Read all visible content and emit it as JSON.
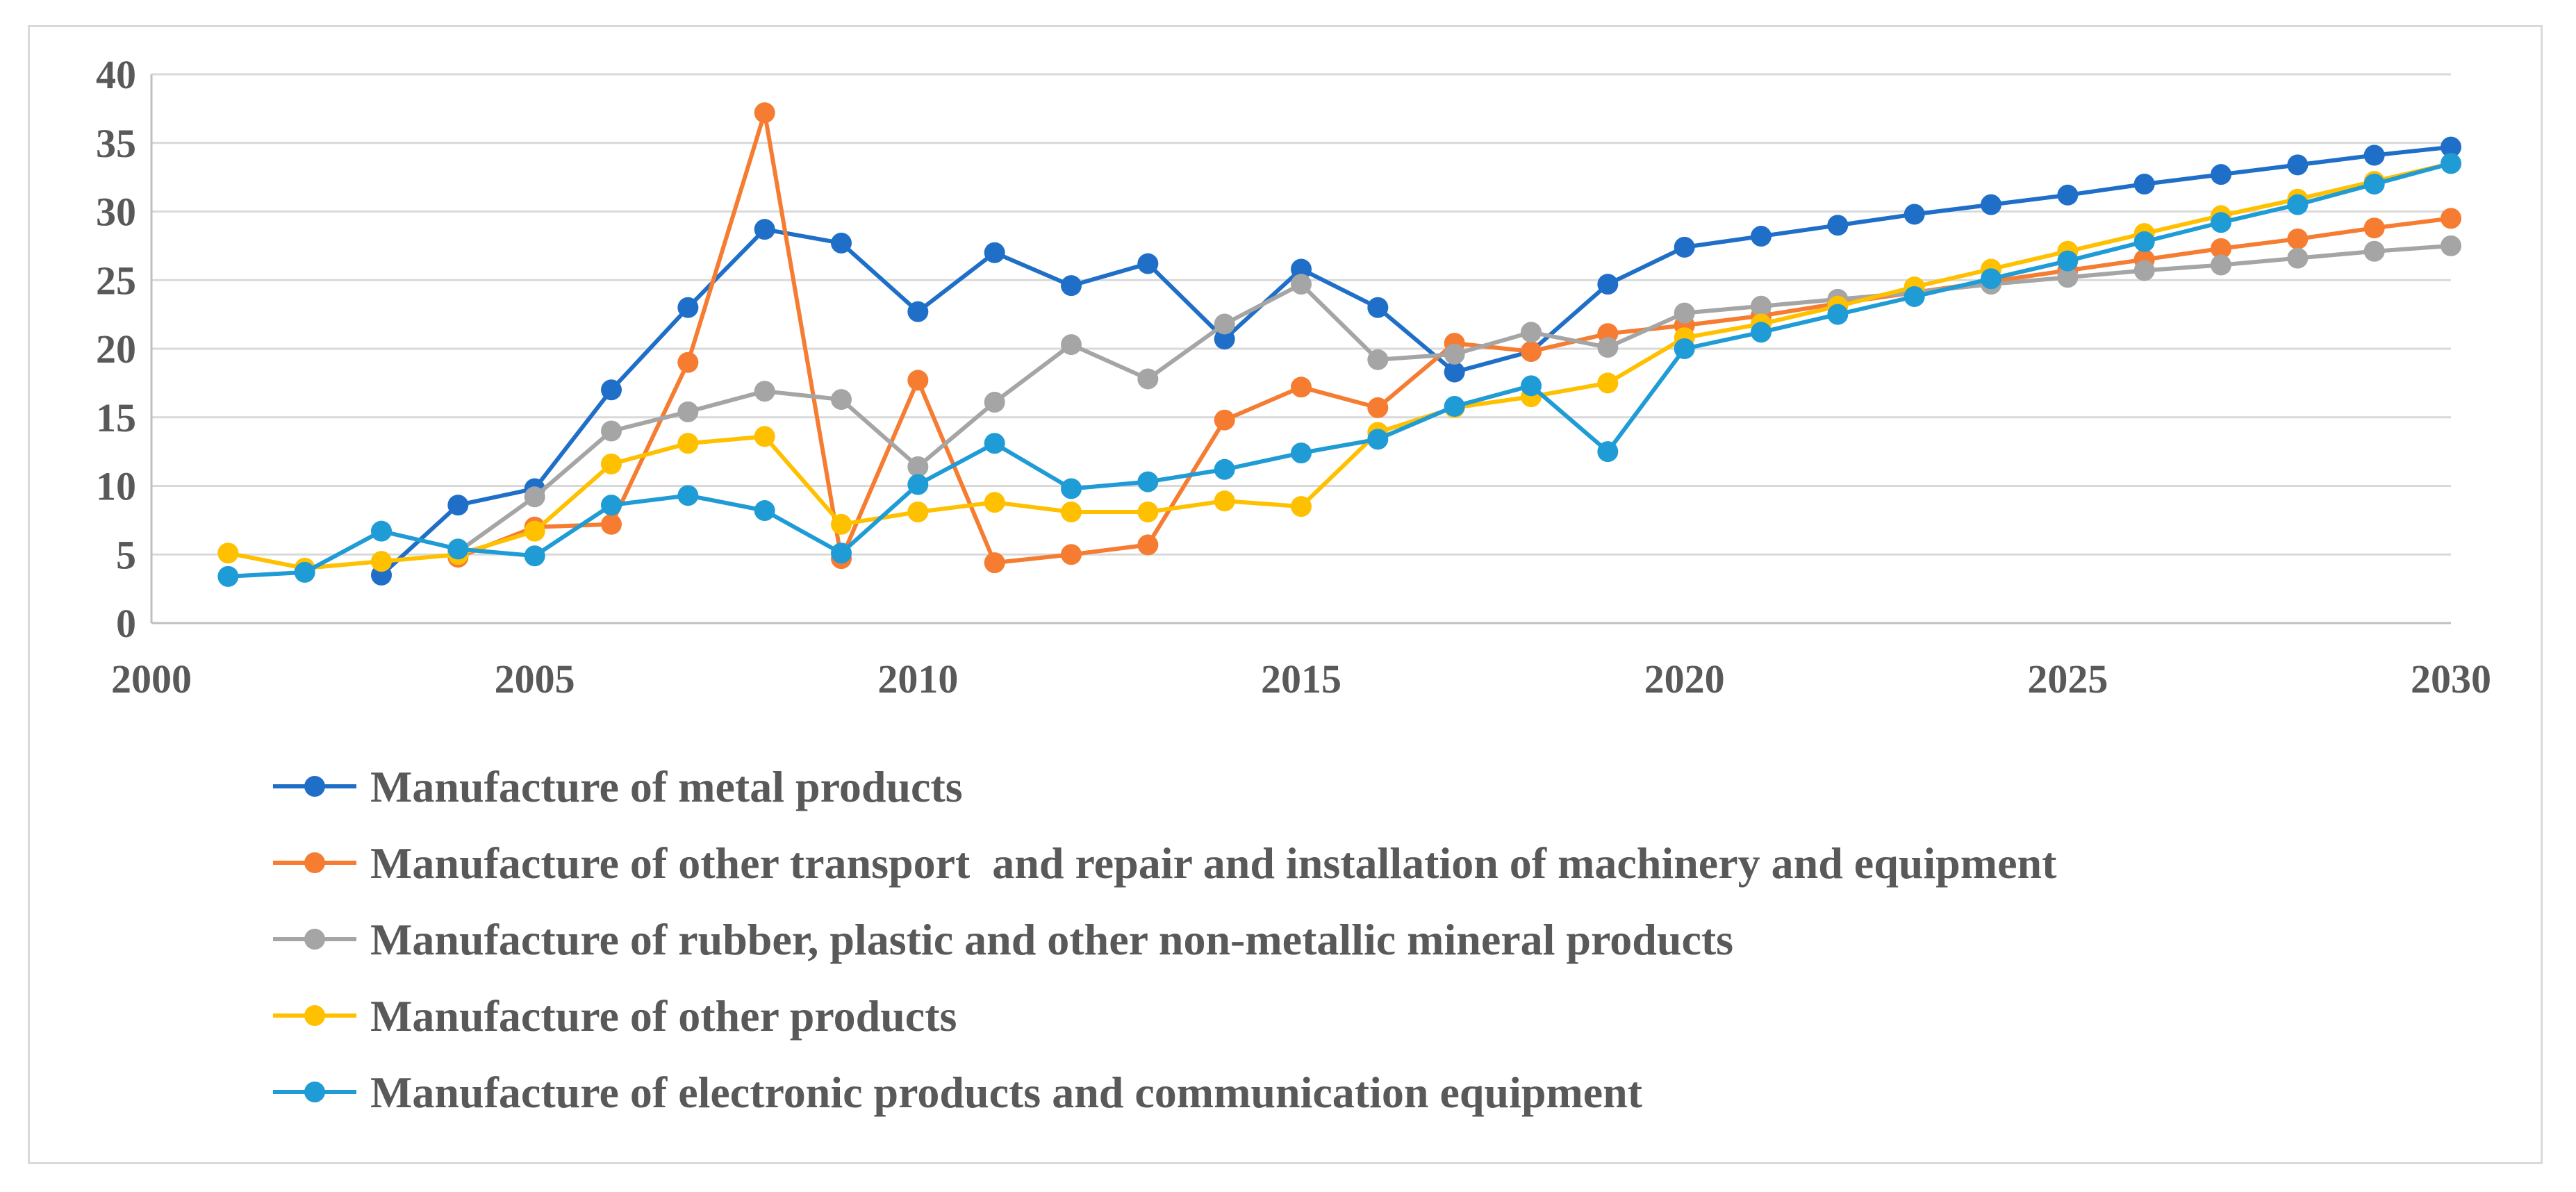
{
  "chart_data": {
    "type": "line",
    "title": "",
    "xlabel": "",
    "ylabel": "",
    "xlim": [
      2000,
      2030
    ],
    "ylim": [
      0,
      40
    ],
    "xticks": [
      2000,
      2005,
      2010,
      2015,
      2020,
      2025,
      2030
    ],
    "yticks": [
      0,
      5,
      10,
      15,
      20,
      25,
      30,
      35,
      40
    ],
    "x_tick_labels": [
      "2000",
      "2005",
      "2010",
      "2015",
      "2020",
      "2025",
      "2030"
    ],
    "y_tick_labels": [
      "0",
      "5",
      "10",
      "15",
      "20",
      "25",
      "30",
      "35",
      "40"
    ],
    "grid": "horizontal",
    "legend_position": "bottom",
    "series": [
      {
        "name": "Manufacture of metal products",
        "color": "#1f6fc8",
        "points": [
          [
            2003,
            3.5
          ],
          [
            2004,
            8.6
          ],
          [
            2005,
            9.8
          ],
          [
            2006,
            17.0
          ],
          [
            2007,
            23.0
          ],
          [
            2008,
            28.7
          ],
          [
            2009,
            27.7
          ],
          [
            2010,
            22.7
          ],
          [
            2011,
            27.0
          ],
          [
            2012,
            24.6
          ],
          [
            2013,
            26.2
          ],
          [
            2014,
            20.7
          ],
          [
            2015,
            25.8
          ],
          [
            2016,
            23.0
          ],
          [
            2017,
            18.3
          ],
          [
            2018,
            19.8
          ],
          [
            2019,
            24.7
          ],
          [
            2020,
            27.4
          ],
          [
            2021,
            28.2
          ],
          [
            2022,
            29.0
          ],
          [
            2023,
            29.8
          ],
          [
            2024,
            30.5
          ],
          [
            2025,
            31.2
          ],
          [
            2026,
            32.0
          ],
          [
            2027,
            32.7
          ],
          [
            2028,
            33.4
          ],
          [
            2029,
            34.1
          ],
          [
            2030,
            34.7
          ]
        ]
      },
      {
        "name": "Manufacture of other transport  and repair and installation of machinery and equipment",
        "color": "#f57c30",
        "points": [
          [
            2004,
            4.8
          ],
          [
            2005,
            7.0
          ],
          [
            2006,
            7.2
          ],
          [
            2007,
            19.0
          ],
          [
            2008,
            37.2
          ],
          [
            2009,
            4.7
          ],
          [
            2010,
            17.7
          ],
          [
            2011,
            4.4
          ],
          [
            2012,
            5.0
          ],
          [
            2013,
            5.7
          ],
          [
            2014,
            14.8
          ],
          [
            2015,
            17.2
          ],
          [
            2016,
            15.7
          ],
          [
            2017,
            20.4
          ],
          [
            2018,
            19.8
          ],
          [
            2019,
            21.1
          ],
          [
            2020,
            21.7
          ],
          [
            2021,
            22.4
          ],
          [
            2022,
            23.3
          ],
          [
            2023,
            24.1
          ],
          [
            2024,
            24.9
          ],
          [
            2025,
            25.7
          ],
          [
            2026,
            26.5
          ],
          [
            2027,
            27.3
          ],
          [
            2028,
            28.0
          ],
          [
            2029,
            28.8
          ],
          [
            2030,
            29.5
          ]
        ]
      },
      {
        "name": "Manufacture of rubber, plastic and other non-metallic mineral products",
        "color": "#a5a5a5",
        "points": [
          [
            2004,
            5.2
          ],
          [
            2005,
            9.2
          ],
          [
            2006,
            14.0
          ],
          [
            2007,
            15.4
          ],
          [
            2008,
            16.9
          ],
          [
            2009,
            16.3
          ],
          [
            2010,
            11.4
          ],
          [
            2011,
            16.1
          ],
          [
            2012,
            20.3
          ],
          [
            2013,
            17.8
          ],
          [
            2014,
            21.8
          ],
          [
            2015,
            24.7
          ],
          [
            2016,
            19.2
          ],
          [
            2017,
            19.6
          ],
          [
            2018,
            21.2
          ],
          [
            2019,
            20.1
          ],
          [
            2020,
            22.6
          ],
          [
            2021,
            23.1
          ],
          [
            2022,
            23.6
          ],
          [
            2023,
            24.1
          ],
          [
            2024,
            24.7
          ],
          [
            2025,
            25.2
          ],
          [
            2026,
            25.7
          ],
          [
            2027,
            26.1
          ],
          [
            2028,
            26.6
          ],
          [
            2029,
            27.1
          ],
          [
            2030,
            27.5
          ]
        ]
      },
      {
        "name": "Manufacture of other products",
        "color": "#ffc000",
        "points": [
          [
            2001,
            5.1
          ],
          [
            2002,
            4.0
          ],
          [
            2003,
            4.5
          ],
          [
            2004,
            5.0
          ],
          [
            2005,
            6.7
          ],
          [
            2006,
            11.6
          ],
          [
            2007,
            13.1
          ],
          [
            2008,
            13.6
          ],
          [
            2009,
            7.2
          ],
          [
            2010,
            8.1
          ],
          [
            2011,
            8.8
          ],
          [
            2012,
            8.1
          ],
          [
            2013,
            8.1
          ],
          [
            2014,
            8.9
          ],
          [
            2015,
            8.5
          ],
          [
            2016,
            13.9
          ],
          [
            2017,
            15.7
          ],
          [
            2018,
            16.5
          ],
          [
            2019,
            17.5
          ],
          [
            2020,
            20.8
          ],
          [
            2021,
            21.8
          ],
          [
            2022,
            23.1
          ],
          [
            2023,
            24.5
          ],
          [
            2024,
            25.8
          ],
          [
            2025,
            27.1
          ],
          [
            2026,
            28.4
          ],
          [
            2027,
            29.7
          ],
          [
            2028,
            30.9
          ],
          [
            2029,
            32.2
          ],
          [
            2030,
            33.5
          ]
        ]
      },
      {
        "name": "Manufacture of electronic products and communication equipment",
        "color": "#1f9bd6",
        "points": [
          [
            2001,
            3.4
          ],
          [
            2002,
            3.7
          ],
          [
            2003,
            6.7
          ],
          [
            2004,
            5.4
          ],
          [
            2005,
            4.9
          ],
          [
            2006,
            8.6
          ],
          [
            2007,
            9.3
          ],
          [
            2008,
            8.2
          ],
          [
            2009,
            5.1
          ],
          [
            2010,
            10.1
          ],
          [
            2011,
            13.1
          ],
          [
            2012,
            9.8
          ],
          [
            2013,
            10.3
          ],
          [
            2014,
            11.2
          ],
          [
            2015,
            12.4
          ],
          [
            2016,
            13.4
          ],
          [
            2017,
            15.8
          ],
          [
            2018,
            17.3
          ],
          [
            2019,
            12.5
          ],
          [
            2020,
            20.0
          ],
          [
            2021,
            21.2
          ],
          [
            2022,
            22.5
          ],
          [
            2023,
            23.8
          ],
          [
            2024,
            25.1
          ],
          [
            2025,
            26.4
          ],
          [
            2026,
            27.8
          ],
          [
            2027,
            29.2
          ],
          [
            2028,
            30.5
          ],
          [
            2029,
            32.0
          ],
          [
            2030,
            33.5
          ]
        ]
      }
    ]
  }
}
